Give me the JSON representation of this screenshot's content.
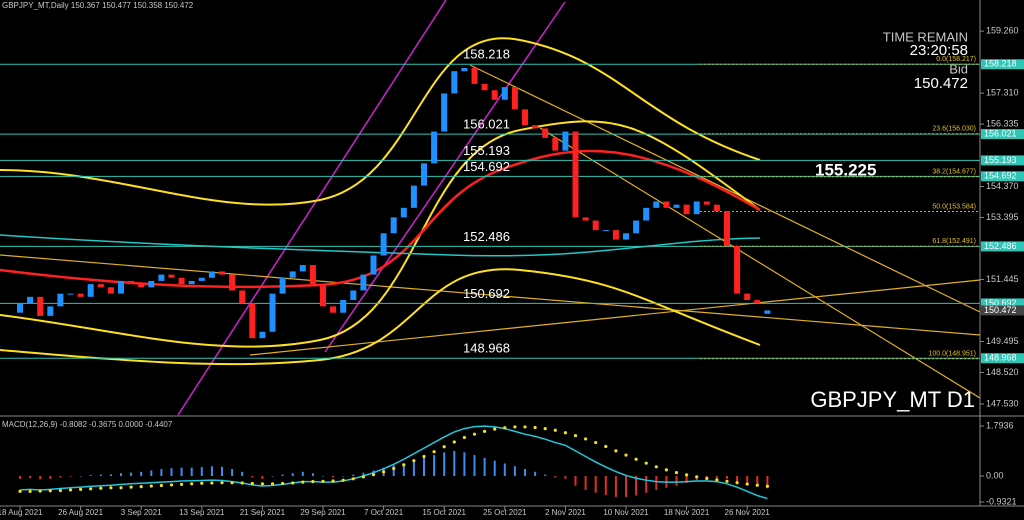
{
  "header": "GBPJPY_MT,Daily 150.367 150.477 150.358 150.472",
  "info": {
    "time_remain_label": "TIME REMAIN",
    "time_remain": "23:20:58",
    "bid_label": "Bid",
    "bid": "150.472"
  },
  "chart_data": [
    {
      "type": "candlestick",
      "title": "GBPJPY_MT D1",
      "annotation": "155.225",
      "categories": [
        "18 Aug 2021",
        null,
        null,
        null,
        null,
        null,
        "26 Aug 2021",
        null,
        null,
        null,
        null,
        null,
        "3 Sep 2021",
        null,
        null,
        null,
        null,
        null,
        "13 Sep 2021",
        null,
        null,
        null,
        null,
        null,
        "21 Sep 2021",
        null,
        null,
        null,
        null,
        null,
        "29 Sep 2021",
        null,
        null,
        null,
        null,
        null,
        "7 Oct 2021",
        null,
        null,
        null,
        null,
        null,
        "15 Oct 2021",
        null,
        null,
        null,
        null,
        null,
        "25 Oct 2021",
        null,
        null,
        null,
        null,
        null,
        "2 Nov 2021",
        null,
        null,
        null,
        null,
        null,
        "10 Nov 2021",
        null,
        null,
        null,
        null,
        null,
        "18 Nov 2021",
        null,
        null,
        null,
        null,
        null,
        "26 Nov 2021",
        null,
        null
      ],
      "open": [
        150.4,
        150.7,
        150.9,
        150.3,
        150.6,
        151.0,
        151.0,
        150.9,
        151.3,
        151.2,
        151.0,
        151.4,
        151.3,
        151.2,
        151.4,
        151.6,
        151.5,
        151.3,
        151.4,
        151.5,
        151.7,
        151.6,
        151.1,
        150.7,
        149.6,
        149.8,
        151.0,
        151.5,
        151.7,
        151.9,
        151.3,
        150.6,
        150.4,
        150.8,
        151.1,
        151.6,
        152.2,
        152.9,
        153.4,
        153.7,
        154.4,
        155.1,
        156.1,
        157.3,
        158.0,
        158.1,
        157.6,
        157.4,
        157.1,
        157.5,
        156.8,
        156.3,
        156.2,
        155.9,
        155.5,
        156.1,
        153.4,
        153.3,
        153.0,
        153.0,
        152.7,
        152.9,
        153.3,
        153.7,
        153.9,
        153.7,
        153.8,
        153.5,
        153.9,
        153.8,
        153.6,
        152.5,
        151.0,
        150.8,
        150.367
      ],
      "close": [
        150.7,
        150.9,
        150.3,
        150.6,
        151.0,
        151.0,
        150.9,
        151.3,
        151.2,
        151.0,
        151.4,
        151.3,
        151.2,
        151.4,
        151.6,
        151.5,
        151.3,
        151.4,
        151.5,
        151.7,
        151.6,
        151.1,
        150.7,
        149.6,
        149.8,
        151.0,
        151.5,
        151.7,
        151.9,
        151.3,
        150.6,
        150.4,
        150.8,
        151.1,
        151.6,
        152.2,
        152.9,
        153.4,
        153.7,
        154.4,
        155.1,
        156.1,
        157.3,
        158.0,
        158.1,
        157.6,
        157.4,
        157.1,
        157.5,
        156.8,
        156.3,
        156.2,
        155.9,
        155.5,
        156.1,
        153.4,
        153.3,
        153.0,
        153.0,
        152.7,
        152.9,
        153.3,
        153.7,
        153.9,
        153.7,
        153.8,
        153.5,
        153.9,
        153.8,
        153.6,
        152.5,
        151.0,
        150.8,
        150.7,
        150.472
      ],
      "up_color": "#1e90ff",
      "down_color": "#ff2020",
      "ylim": [
        147.15,
        160.24
      ],
      "yticks": [
        {
          "value": 159.26,
          "label": "159.260"
        },
        {
          "value": 157.31,
          "label": "157.310"
        },
        {
          "value": 156.335,
          "label": "156.335"
        },
        {
          "value": 154.37,
          "label": "154.370"
        },
        {
          "value": 153.395,
          "label": "153.395"
        },
        {
          "value": 151.445,
          "label": "151.445"
        },
        {
          "value": 149.495,
          "label": "149.495"
        },
        {
          "value": 148.52,
          "label": "148.520"
        },
        {
          "value": 147.53,
          "label": "147.530"
        }
      ],
      "levels": [
        158.218,
        156.021,
        155.193,
        154.692,
        152.486,
        150.692,
        148.968
      ],
      "level_color": "#2ec4b6",
      "current_price": 150.472,
      "fibonacci": [
        {
          "value": 158.217,
          "label": "0.0(158.217)"
        },
        {
          "value": 156.03,
          "label": "23.6(156.030)"
        },
        {
          "value": 154.677,
          "label": "38.2(154.677)"
        },
        {
          "value": 153.584,
          "label": "50.0(153.584)"
        },
        {
          "value": 152.491,
          "label": "61.8(152.491)"
        },
        {
          "value": 148.951,
          "label": "100.0(148.951)"
        }
      ]
    },
    {
      "type": "macd",
      "title": "MACD(12,26,9) -0.8082 -0.3675 0.0000 -0.4407",
      "ylim": [
        -1.04,
        2.08
      ],
      "yticks": [
        {
          "value": 1.7936,
          "label": "1.7936"
        },
        {
          "value": 0,
          "label": "0.00"
        },
        {
          "value": -0.9321,
          "label": "-0.9321"
        }
      ],
      "series": [
        {
          "type": "bar",
          "color": "#3a8ef0",
          "negative_color": "#e03020",
          "values": [
            -0.1,
            -0.08,
            -0.12,
            -0.1,
            -0.05,
            -0.02,
            0.0,
            0.03,
            0.05,
            0.06,
            0.1,
            0.12,
            0.15,
            0.2,
            0.25,
            0.28,
            0.3,
            0.3,
            0.32,
            0.35,
            0.33,
            0.25,
            0.15,
            -0.05,
            -0.1,
            0.0,
            0.05,
            0.1,
            0.15,
            0.1,
            0.0,
            -0.05,
            0.0,
            0.05,
            0.12,
            0.2,
            0.3,
            0.38,
            0.45,
            0.55,
            0.65,
            0.75,
            0.85,
            0.9,
            0.85,
            0.75,
            0.65,
            0.55,
            0.45,
            0.35,
            0.25,
            0.15,
            0.05,
            -0.05,
            -0.1,
            -0.35,
            -0.5,
            -0.6,
            -0.68,
            -0.75,
            -0.75,
            -0.7,
            -0.6,
            -0.5,
            -0.42,
            -0.35,
            -0.25,
            -0.15,
            -0.1,
            -0.08,
            -0.1,
            -0.2,
            -0.3,
            -0.38,
            -0.4407
          ]
        },
        {
          "type": "line",
          "color": "#20c8e0",
          "values": [
            -0.5,
            -0.48,
            -0.5,
            -0.48,
            -0.45,
            -0.42,
            -0.4,
            -0.37,
            -0.35,
            -0.33,
            -0.3,
            -0.28,
            -0.26,
            -0.24,
            -0.22,
            -0.2,
            -0.18,
            -0.17,
            -0.16,
            -0.15,
            -0.16,
            -0.2,
            -0.25,
            -0.32,
            -0.36,
            -0.34,
            -0.3,
            -0.25,
            -0.2,
            -0.2,
            -0.22,
            -0.22,
            -0.18,
            -0.1,
            0.0,
            0.12,
            0.26,
            0.42,
            0.6,
            0.8,
            1.0,
            1.2,
            1.4,
            1.58,
            1.7,
            1.77,
            1.79,
            1.76,
            1.7,
            1.6,
            1.5,
            1.42,
            1.32,
            1.2,
            1.1,
            0.9,
            0.7,
            0.5,
            0.32,
            0.16,
            0.02,
            -0.08,
            -0.15,
            -0.2,
            -0.22,
            -0.22,
            -0.2,
            -0.18,
            -0.18,
            -0.2,
            -0.28,
            -0.4,
            -0.55,
            -0.7,
            -0.8082
          ]
        },
        {
          "type": "dots",
          "color": "#f0e020",
          "values": [
            -0.55,
            -0.55,
            -0.54,
            -0.53,
            -0.52,
            -0.5,
            -0.48,
            -0.46,
            -0.44,
            -0.42,
            -0.42,
            -0.4,
            -0.38,
            -0.36,
            -0.34,
            -0.32,
            -0.3,
            -0.28,
            -0.26,
            -0.25,
            -0.24,
            -0.24,
            -0.25,
            -0.27,
            -0.28,
            -0.28,
            -0.27,
            -0.25,
            -0.22,
            -0.2,
            -0.19,
            -0.18,
            -0.15,
            -0.1,
            -0.03,
            0.05,
            0.15,
            0.27,
            0.4,
            0.55,
            0.7,
            0.87,
            1.05,
            1.22,
            1.38,
            1.5,
            1.6,
            1.68,
            1.73,
            1.76,
            1.76,
            1.74,
            1.7,
            1.64,
            1.55,
            1.45,
            1.33,
            1.2,
            1.06,
            0.9,
            0.75,
            0.6,
            0.46,
            0.33,
            0.22,
            0.12,
            0.04,
            -0.03,
            -0.09,
            -0.14,
            -0.19,
            -0.24,
            -0.29,
            -0.33,
            -0.3675
          ]
        }
      ]
    }
  ]
}
